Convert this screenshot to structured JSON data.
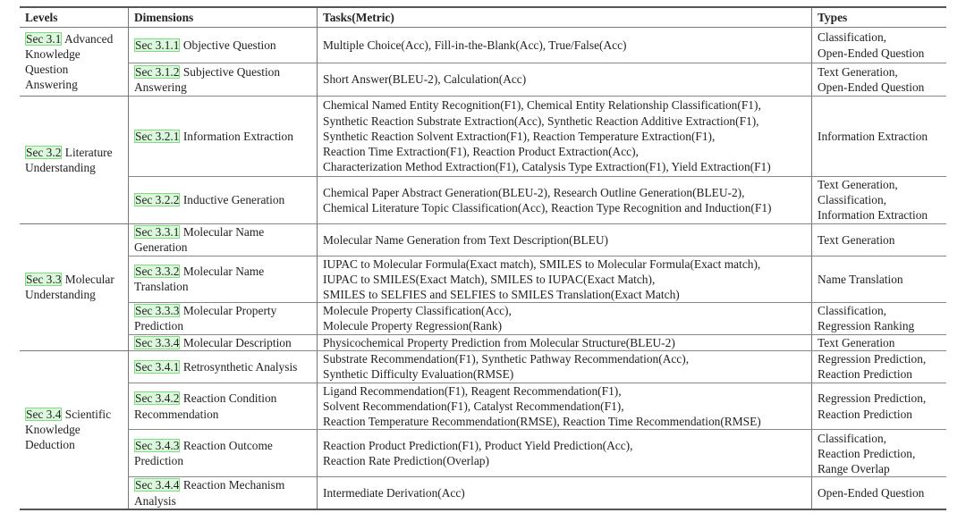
{
  "headers": {
    "levels": "Levels",
    "dimensions": "Dimensions",
    "tasks": "Tasks(Metric)",
    "types": "Types"
  },
  "link_color": "#7be07b",
  "groups": [
    {
      "sec": "Sec 3.1",
      "name": "Advanced Knowledge Question Answering",
      "rows": [
        {
          "sec": "Sec 3.1.1",
          "name": "Objective Question",
          "tasks": [
            "Multiple Choice(Acc), Fill-in-the-Blank(Acc), True/False(Acc)"
          ],
          "types": [
            "Classification,",
            "Open-Ended Question"
          ]
        },
        {
          "sec": "Sec 3.1.2",
          "name": "Subjective Question Answering",
          "tasks": [
            "Short Answer(BLEU-2), Calculation(Acc)"
          ],
          "types": [
            "Text Generation,",
            "Open-Ended Question"
          ]
        }
      ]
    },
    {
      "sec": "Sec 3.2",
      "name": "Literature Understanding",
      "rows": [
        {
          "sec": "Sec 3.2.1",
          "name": "Information Extraction",
          "tasks": [
            "Chemical Named Entity Recognition(F1), Chemical Entity Relationship Classification(F1),",
            "Synthetic Reaction Substrate Extraction(Acc), Synthetic Reaction Additive Extraction(F1),",
            "Synthetic Reaction Solvent Extraction(F1), Reaction Temperature Extraction(F1),",
            "Reaction Time Extraction(F1), Reaction Product Extraction(Acc),",
            "Characterization Method Extraction(F1), Catalysis Type Extraction(F1), Yield Extraction(F1)"
          ],
          "types": [
            "Information Extraction"
          ]
        },
        {
          "sec": "Sec 3.2.2",
          "name": "Inductive Generation",
          "tasks": [
            "Chemical Paper Abstract Generation(BLEU-2), Research Outline Generation(BLEU-2),",
            "Chemical Literature Topic Classification(Acc), Reaction Type Recognition and Induction(F1)"
          ],
          "types": [
            "Text Generation,",
            "Classification,",
            "Information Extraction"
          ]
        }
      ]
    },
    {
      "sec": "Sec 3.3",
      "name": "Molecular Understanding",
      "rows": [
        {
          "sec": "Sec 3.3.1",
          "name": "Molecular Name Generation",
          "tasks": [
            "Molecular Name Generation from Text Description(BLEU)"
          ],
          "types": [
            "Text Generation"
          ]
        },
        {
          "sec": "Sec 3.3.2",
          "name": "Molecular Name Translation",
          "tasks": [
            "IUPAC to Molecular Formula(Exact match), SMILES to Molecular Formula(Exact match),",
            "IUPAC to SMILES(Exact Match), SMILES to IUPAC(Exact Match),",
            "SMILES to SELFIES and SELFIES to SMILES Translation(Exact Match)"
          ],
          "types": [
            "Name Translation"
          ]
        },
        {
          "sec": "Sec 3.3.3",
          "name": "Molecular Property Prediction",
          "tasks": [
            "Molecule Property Classification(Acc),",
            "Molecule Property Regression(Rank)"
          ],
          "types": [
            "Classification,",
            "Regression Ranking"
          ]
        },
        {
          "sec": "Sec 3.3.4",
          "name": "Molecular Description",
          "tasks": [
            "Physicochemical Property Prediction from Molecular Structure(BLEU-2)"
          ],
          "types": [
            "Text Generation"
          ]
        }
      ]
    },
    {
      "sec": "Sec 3.4",
      "name": "Scientific Knowledge Deduction",
      "rows": [
        {
          "sec": "Sec 3.4.1",
          "name": "Retrosynthetic Analysis",
          "tasks": [
            "Substrate Recommendation(F1), Synthetic Pathway Recommendation(Acc),",
            "Synthetic Difficulty Evaluation(RMSE)"
          ],
          "types": [
            "Regression Prediction,",
            "Reaction Prediction"
          ]
        },
        {
          "sec": "Sec 3.4.2",
          "name": "Reaction Condition Recommendation",
          "tasks": [
            "Ligand Recommendation(F1), Reagent Recommendation(F1),",
            "Solvent Recommendation(F1), Catalyst Recommendation(F1),",
            "Reaction Temperature Recommendation(RMSE), Reaction Time Recommendation(RMSE)"
          ],
          "types": [
            "Regression Prediction,",
            "Reaction Prediction"
          ]
        },
        {
          "sec": "Sec 3.4.3",
          "name": "Reaction Outcome Prediction",
          "tasks": [
            "Reaction Product Prediction(F1), Product Yield Prediction(Acc),",
            "Reaction Rate Prediction(Overlap)"
          ],
          "types": [
            "Classification,",
            "Reaction Prediction,",
            "Range Overlap"
          ]
        },
        {
          "sec": "Sec 3.4.4",
          "name": "Reaction Mechanism Analysis",
          "tasks": [
            "Intermediate Derivation(Acc)"
          ],
          "types": [
            "Open-Ended Question"
          ]
        }
      ]
    }
  ]
}
